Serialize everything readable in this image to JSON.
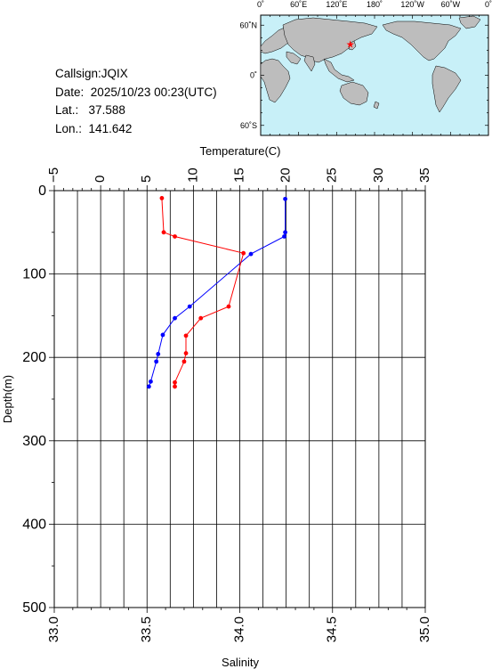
{
  "info": {
    "callsign_label": "Callsign:",
    "callsign": "JQIX",
    "date_label": "Date:",
    "date": "2025/10/23 00:23(UTC)",
    "lat_label": "Lat.:",
    "lat": "37.588",
    "lon_label": "Lon.:",
    "lon": "141.642"
  },
  "map": {
    "top_labels": [
      "0˚",
      "60˚E",
      "120˚E",
      "180˚",
      "120˚W",
      "60˚W",
      "0˚"
    ],
    "lat_labels": [
      "60˚N",
      "0˚",
      "60˚S"
    ],
    "station": {
      "lat": 37.588,
      "lon": 141.642
    },
    "colors": {
      "ocean": "#c8f0f8",
      "land": "#bdbdbd",
      "marker": "#ff0000"
    }
  },
  "chart_data": {
    "type": "line",
    "xlabel_top": "Temperature(C)",
    "xlabel_bottom": "Salinity",
    "ylabel": "Depth(m)",
    "temperature_range": [
      -5,
      35
    ],
    "temperature_ticks": [
      "−5",
      "0",
      "5",
      "10",
      "15",
      "20",
      "25",
      "30",
      "35"
    ],
    "salinity_range": [
      33.0,
      35.0
    ],
    "salinity_ticks": [
      "33.0",
      "33.5",
      "34.0",
      "34.5",
      "35.0"
    ],
    "depth_range": [
      0,
      500
    ],
    "depth_ticks": [
      "0",
      "100",
      "200",
      "300",
      "400",
      "500"
    ],
    "grid": true,
    "series": [
      {
        "axis": "temperature",
        "color": "#0000ff",
        "points": [
          {
            "x": 19.9,
            "depth": 10
          },
          {
            "x": 19.9,
            "depth": 50
          },
          {
            "x": 19.8,
            "depth": 55
          },
          {
            "x": 16.2,
            "depth": 76
          },
          {
            "x": 9.6,
            "depth": 139
          },
          {
            "x": 8.0,
            "depth": 153
          },
          {
            "x": 6.7,
            "depth": 173
          },
          {
            "x": 6.2,
            "depth": 196
          },
          {
            "x": 6.0,
            "depth": 205
          },
          {
            "x": 5.4,
            "depth": 229
          },
          {
            "x": 5.2,
            "depth": 235
          }
        ]
      },
      {
        "axis": "salinity",
        "color": "#ff0000",
        "points": [
          {
            "x": 33.58,
            "depth": 9
          },
          {
            "x": 33.59,
            "depth": 50
          },
          {
            "x": 33.65,
            "depth": 55
          },
          {
            "x": 34.02,
            "depth": 75
          },
          {
            "x": 33.94,
            "depth": 139
          },
          {
            "x": 33.79,
            "depth": 153
          },
          {
            "x": 33.71,
            "depth": 174
          },
          {
            "x": 33.71,
            "depth": 195
          },
          {
            "x": 33.7,
            "depth": 205
          },
          {
            "x": 33.65,
            "depth": 230
          },
          {
            "x": 33.65,
            "depth": 235
          }
        ]
      }
    ]
  }
}
